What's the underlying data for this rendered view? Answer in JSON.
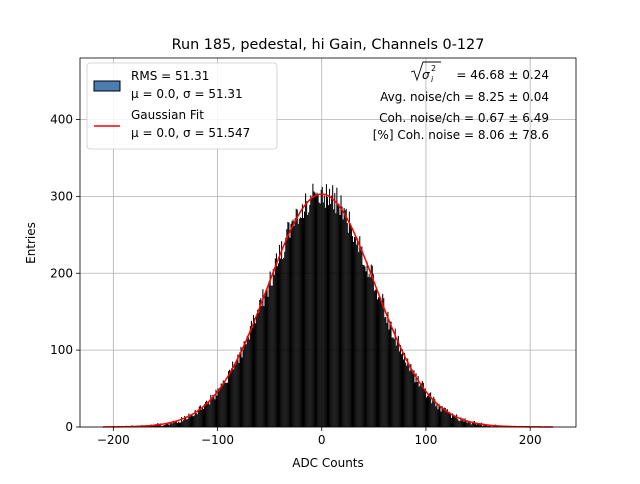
{
  "chart_data": {
    "type": "bar",
    "title": "Run 185, pedestal, hi Gain, Channels 0-127",
    "xlabel": "ADC Counts",
    "ylabel": "Entries",
    "xlim": [
      -232,
      244
    ],
    "ylim": [
      0,
      480
    ],
    "xticks": [
      -200,
      -100,
      0,
      100,
      200
    ],
    "yticks": [
      0,
      100,
      200,
      300,
      400
    ],
    "xtick_labels": [
      "−200",
      "−100",
      "0",
      "100",
      "200"
    ],
    "ytick_labels": [
      "0",
      "100",
      "200",
      "300",
      "400"
    ],
    "grid": true,
    "legend_position": "top-left",
    "histogram": {
      "name": "RMS = 51.31",
      "subtitle": "μ = 0.0, σ = 51.31",
      "color": "#000000",
      "legend_color": "#4a7eb0",
      "x_min": -210,
      "x_max": 222,
      "bin_width": 1,
      "mu": 0.0,
      "sigma": 51.31,
      "peak": 305
    },
    "fit": {
      "name": "Gaussian Fit",
      "subtitle": "μ = 0.0, σ = 51.547",
      "color": "#ff0000",
      "mu": 0.0,
      "sigma": 51.547,
      "amplitude": 303
    },
    "annotations": {
      "sigma_sq_value": " = 46.68 ± 0.24",
      "avg_noise": "Avg. noise/ch = 8.25 ± 0.04",
      "coh_noise": "Coh. noise/ch = 0.67 ± 6.49",
      "pct_coh_noise": "[%] Coh. noise = 8.06 ± 78.6"
    }
  }
}
